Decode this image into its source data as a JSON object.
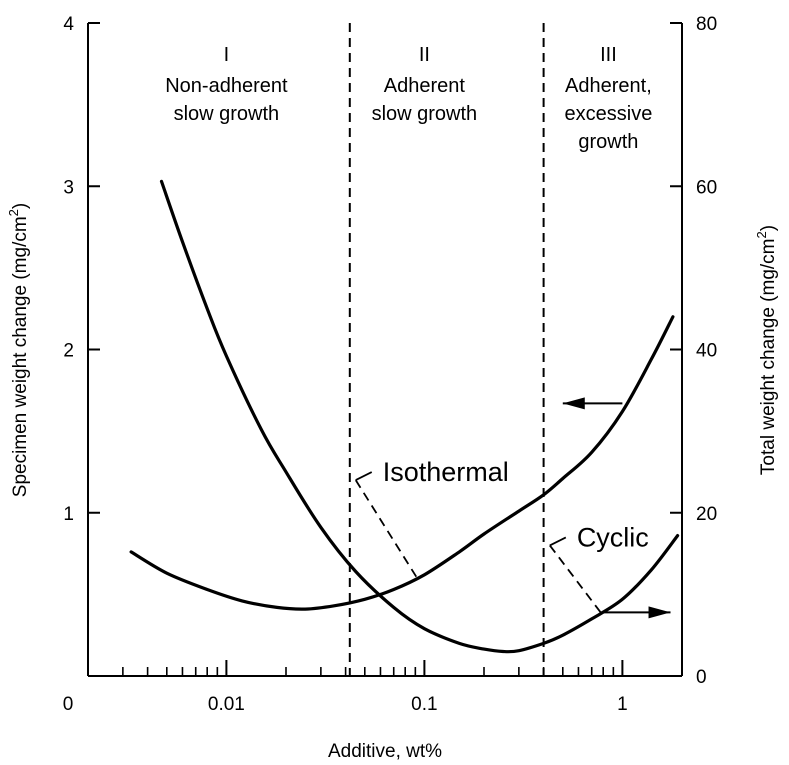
{
  "chart_data": {
    "type": "line",
    "title": "",
    "xlabel": "Additive, wt%",
    "ylabel_left": "Specimen weight change (mg/cm²)",
    "ylabel_right": "Total weight change (mg/cm²)",
    "x_scale": "log",
    "xlim": [
      0.002,
      2.0
    ],
    "ylim_left": [
      0,
      4
    ],
    "ylim_right": [
      0,
      80
    ],
    "grid": false,
    "x_ticks": [
      {
        "value": 0.002,
        "label": "0"
      },
      {
        "value": 0.01,
        "label": "0.01"
      },
      {
        "value": 0.1,
        "label": "0.1"
      },
      {
        "value": 1,
        "label": "1"
      }
    ],
    "y_ticks_left": [
      "0",
      "1",
      "2",
      "3",
      "4"
    ],
    "y_ticks_right": [
      "0",
      "20",
      "40",
      "60",
      "80"
    ],
    "region_boundaries_x": [
      0.042,
      0.4
    ],
    "regions": [
      {
        "numeral": "I",
        "lines": [
          "Non-adherent",
          "slow growth"
        ],
        "x": 0.01
      },
      {
        "numeral": "II",
        "lines": [
          "Adherent",
          "slow growth"
        ],
        "x": 0.1
      },
      {
        "numeral": "III",
        "lines": [
          "Adherent,",
          "excessive",
          "growth"
        ],
        "x": 0.85
      }
    ],
    "series": [
      {
        "name": "Isothermal",
        "axis": "left",
        "x": [
          0.0033,
          0.005,
          0.008,
          0.012,
          0.018,
          0.025,
          0.035,
          0.05,
          0.07,
          0.1,
          0.15,
          0.2,
          0.3,
          0.4,
          0.5,
          0.7,
          1.0,
          1.4,
          1.8
        ],
        "values": [
          0.76,
          0.63,
          0.53,
          0.46,
          0.42,
          0.41,
          0.43,
          0.47,
          0.53,
          0.62,
          0.76,
          0.87,
          1.01,
          1.11,
          1.21,
          1.37,
          1.62,
          1.94,
          2.2
        ]
      },
      {
        "name": "Cyclic",
        "axis": "right",
        "x": [
          0.0047,
          0.006,
          0.008,
          0.01,
          0.015,
          0.02,
          0.03,
          0.045,
          0.07,
          0.1,
          0.15,
          0.2,
          0.25,
          0.3,
          0.4,
          0.5,
          0.7,
          1.0,
          1.4,
          1.9
        ],
        "values": [
          60.6,
          53.2,
          45.0,
          39.2,
          30.2,
          25.0,
          18.2,
          12.8,
          8.4,
          5.8,
          4.0,
          3.3,
          3.0,
          3.1,
          4.0,
          5.0,
          7.0,
          9.4,
          13.0,
          17.2
        ]
      }
    ],
    "annotations": [
      {
        "text": "Isothermal",
        "series": "Isothermal",
        "leader_x": 0.092,
        "label_anchor": {
          "x": 0.045,
          "y_left": 1.2
        }
      },
      {
        "text": "Cyclic",
        "series": "Cyclic",
        "leader_x": 0.78,
        "label_anchor": {
          "x": 0.43,
          "y_left": 0.8
        }
      }
    ],
    "axis_arrows": [
      {
        "series": "Isothermal",
        "points_to": "left",
        "from_x": 1.0,
        "to_x": 0.5,
        "y_left": 1.67
      },
      {
        "series": "Cyclic",
        "points_to": "right",
        "from_x": 0.78,
        "to_x": 1.75,
        "y_left": 0.39
      }
    ]
  }
}
